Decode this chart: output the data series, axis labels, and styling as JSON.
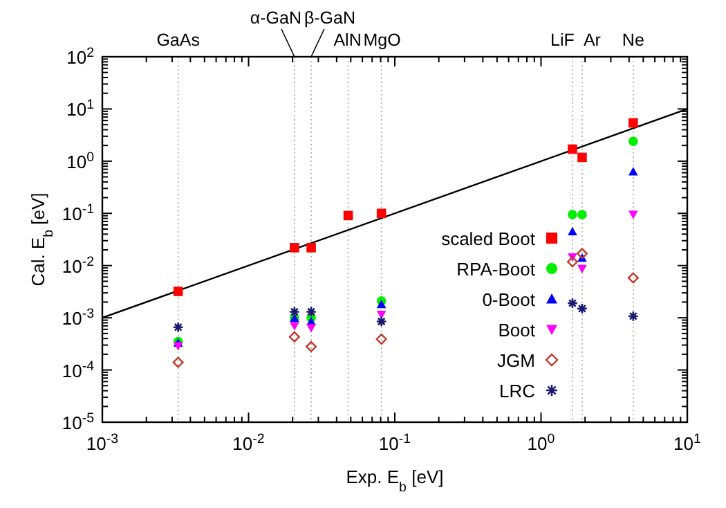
{
  "chart_data": {
    "type": "scatter",
    "xlabel": "Exp. E$_{b}$ [eV]",
    "ylabel": "Cal. E$_{b}$ [eV]",
    "log": "xy",
    "grid": false,
    "legend": "center",
    "xlim": [
      0.001,
      10
    ],
    "ylim": [
      1e-05,
      100
    ],
    "xticks": [
      {
        "value": 0.001,
        "label": "10$^{-3}$"
      },
      {
        "value": 0.01,
        "label": "10$^{-2}$"
      },
      {
        "value": 0.1,
        "label": "10$^{-1}$"
      },
      {
        "value": 1,
        "label": "10$^{0}$"
      },
      {
        "value": 10,
        "label": "10$^{1}$"
      }
    ],
    "yticks": [
      {
        "value": 1e-05,
        "label": "10$^{-5}$"
      },
      {
        "value": 0.0001,
        "label": "10$^{-4}$"
      },
      {
        "value": 0.001,
        "label": "10$^{-3}$"
      },
      {
        "value": 0.01,
        "label": "10$^{-2}$"
      },
      {
        "value": 0.1,
        "label": "10$^{-1}$"
      },
      {
        "value": 1,
        "label": "10$^{0}$"
      },
      {
        "value": 10,
        "label": "10$^{1}$"
      },
      {
        "value": 100,
        "label": "10$^{2}$"
      }
    ],
    "x": [
      0.0033,
      0.0206,
      0.0268,
      0.048,
      0.081,
      1.64,
      1.91,
      4.27
    ],
    "ref_lines": [
      {
        "axis": "x",
        "value": 0.0033,
        "label": "GaAs",
        "line_style": "dotted",
        "color": "#aaaaaa"
      },
      {
        "axis": "x",
        "value": 0.0206,
        "label": "α-GaN",
        "line_style": "dotted",
        "color": "#aaaaaa"
      },
      {
        "axis": "x",
        "value": 0.0268,
        "label": "β-GaN",
        "line_style": "dotted",
        "color": "#aaaaaa"
      },
      {
        "axis": "x",
        "value": 0.048,
        "label": "AlN",
        "line_style": "dotted",
        "color": "#aaaaaa"
      },
      {
        "axis": "x",
        "value": 0.081,
        "label": "MgO",
        "line_style": "dotted",
        "color": "#aaaaaa"
      },
      {
        "axis": "x",
        "value": 1.64,
        "label": "LiF",
        "line_style": "dotted",
        "color": "#aaaaaa"
      },
      {
        "axis": "x",
        "value": 1.91,
        "label": "Ar",
        "line_style": "dotted",
        "color": "#aaaaaa"
      },
      {
        "axis": "x",
        "value": 4.27,
        "label": "Ne",
        "line_style": "dotted",
        "color": "#aaaaaa"
      }
    ],
    "series": [
      {
        "type": "line",
        "x": [
          0.001,
          10
        ],
        "values": [
          0.001,
          10
        ],
        "color": "#000000",
        "line_style": "solid"
      },
      {
        "name": "scaled Boot",
        "color": "#ff0000",
        "marker": "square",
        "values": [
          0.0032,
          0.022,
          0.022,
          0.091,
          0.1,
          1.7,
          1.18,
          5.4
        ]
      },
      {
        "name": "RPA-Boot",
        "color": "#00ee00",
        "marker": "circle",
        "values": [
          0.00035,
          0.001,
          0.001,
          null,
          0.0021,
          0.095,
          0.095,
          2.4
        ]
      },
      {
        "name": "0-Boot",
        "color": "#0000ff",
        "marker": "triangle",
        "values": [
          0.00033,
          0.00098,
          0.00085,
          null,
          0.0018,
          0.045,
          0.014,
          0.63
        ]
      },
      {
        "name": "Boot",
        "color": "#ff00ff",
        "marker": "triangle-down",
        "values": [
          0.00029,
          0.0007,
          0.00064,
          null,
          0.00115,
          0.0145,
          0.0087,
          0.095
        ]
      },
      {
        "name": "JGM",
        "color": "#c0392b",
        "marker": "diamond",
        "values": [
          0.00014,
          0.00043,
          0.00028,
          null,
          0.00039,
          0.0118,
          0.017,
          0.0058
        ]
      },
      {
        "name": "LRC",
        "color": "#191970",
        "marker": "cross",
        "values": [
          0.00066,
          0.0013,
          0.0013,
          null,
          0.00085,
          0.0019,
          0.0015,
          0.00107
        ]
      }
    ]
  }
}
